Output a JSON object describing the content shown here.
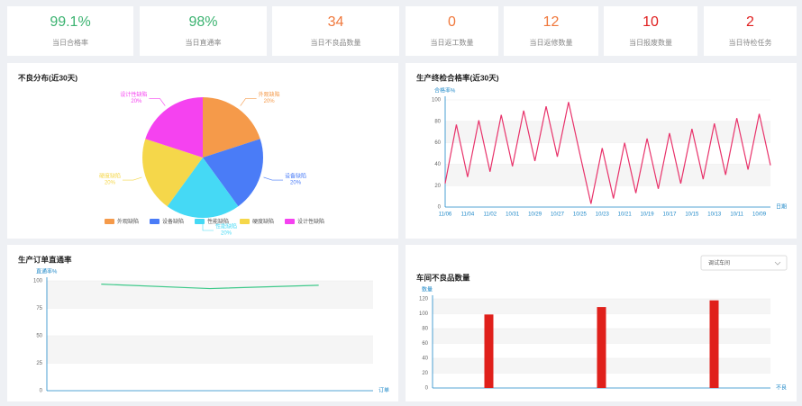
{
  "kpis": [
    {
      "value": "99.1%",
      "label": "当日合格率",
      "color": "#3cb371"
    },
    {
      "value": "98%",
      "label": "当日直通率",
      "color": "#3cb371"
    },
    {
      "value": "34",
      "label": "当日不良品数量",
      "color": "#f0783c"
    },
    {
      "value": "0",
      "label": "当日返工数量",
      "color": "#f0783c"
    },
    {
      "value": "12",
      "label": "当日返修数量",
      "color": "#f0783c"
    },
    {
      "value": "10",
      "label": "当日报废数量",
      "color": "#e02020"
    },
    {
      "value": "2",
      "label": "当日待检任务",
      "color": "#e02020"
    }
  ],
  "chart_data": [
    {
      "type": "pie",
      "title": "不良分布(近30天)",
      "categories": [
        "外观缺陷",
        "设备缺陷",
        "性能缺陷",
        "硬度缺陷",
        "设计性缺陷"
      ],
      "values": [
        20,
        20,
        20,
        20,
        20
      ],
      "value_labels": [
        "20%",
        "20%",
        "20%",
        "20%",
        "20%"
      ],
      "colors": [
        "#f59a4a",
        "#4a7cf7",
        "#45d9f5",
        "#f5d74a",
        "#f542f0"
      ],
      "legend": "bottom"
    },
    {
      "type": "line",
      "title": "生产终检合格率(近30天)",
      "y_label": "合格率%",
      "x_label": "日期",
      "color": "#e8336b",
      "categories": [
        "11/06",
        null,
        "11/04",
        null,
        "11/02",
        null,
        "10/31",
        null,
        "10/29",
        null,
        "10/27",
        null,
        "10/25",
        null,
        "10/23",
        null,
        "10/21",
        null,
        "10/19",
        null,
        "10/17",
        null,
        "10/15",
        null,
        "10/13",
        null,
        "10/11",
        null,
        "10/09",
        null
      ],
      "values": [
        22,
        77,
        28,
        81,
        33,
        86,
        38,
        90,
        43,
        94,
        47,
        98,
        50,
        3,
        55,
        8,
        60,
        13,
        64,
        17,
        69,
        22,
        73,
        26,
        78,
        30,
        83,
        35,
        87,
        39
      ],
      "ylim": [
        0,
        100
      ],
      "yticks": [
        0,
        20,
        40,
        60,
        80,
        100
      ],
      "grid": true
    },
    {
      "type": "line",
      "title": "生产订单直通率",
      "y_label": "直通率%",
      "x_label": "订单",
      "color": "#3ec98a",
      "categories": [
        null,
        null,
        null
      ],
      "values": [
        97,
        93,
        96
      ],
      "ylim": [
        0,
        100
      ],
      "yticks": [
        0,
        25,
        50,
        75,
        100
      ],
      "grid": true
    },
    {
      "type": "bar",
      "title": "车间不良品数量",
      "dropdown": "调试车间",
      "y_label": "数量",
      "x_label": "不良",
      "color": "#e0201b",
      "categories": [
        null,
        null,
        null
      ],
      "values": [
        99,
        109,
        118
      ],
      "ylim": [
        0,
        120
      ],
      "yticks": [
        0,
        20,
        40,
        60,
        80,
        100,
        120
      ],
      "grid": true
    }
  ]
}
